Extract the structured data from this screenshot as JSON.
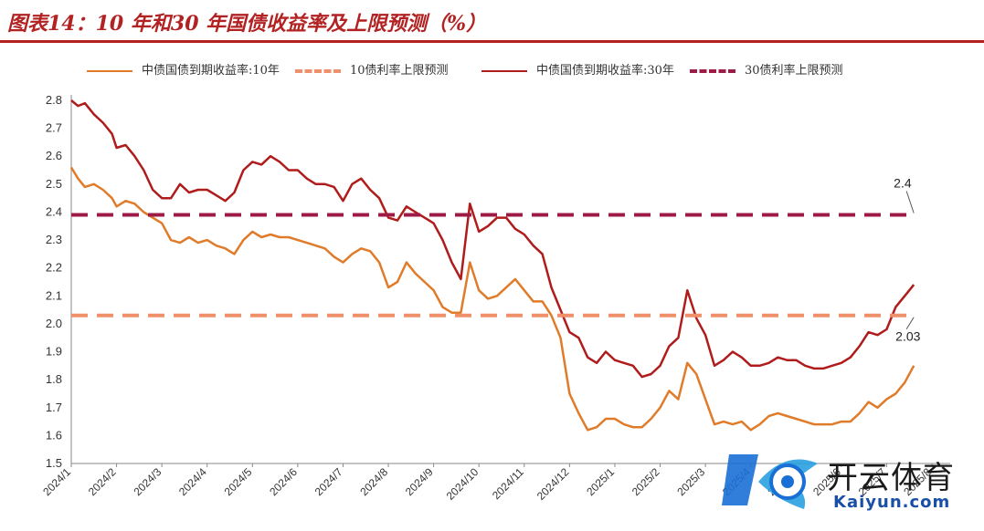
{
  "title": "图表14：10 年和30 年国债收益率及上限预测（%）",
  "legend": [
    {
      "label": "中债国债到期收益率:10年",
      "color": "#e07b2a",
      "dash": false
    },
    {
      "label": "10债利率上限预测",
      "color": "#f0906a",
      "dash": true
    },
    {
      "label": "中债国债到期收益率:30年",
      "color": "#b01c1c",
      "dash": false
    },
    {
      "label": "30债利率上限预测",
      "color": "#9e1b45",
      "dash": true
    }
  ],
  "watermark": {
    "main": "开云体育",
    "sub": "Kaiyun.com",
    "logo": "kaiyun-logo"
  },
  "chart_data": {
    "type": "line",
    "title": "",
    "xlabel": "",
    "ylabel": "",
    "ylim": [
      1.5,
      2.8
    ],
    "yticks": [
      "2.8",
      "2.7",
      "2.6",
      "2.5",
      "2.4",
      "2.3",
      "2.2",
      "2.1",
      "2.0",
      "1.9",
      "1.8",
      "1.7",
      "1.6",
      "1.5"
    ],
    "xticks": [
      "2024/1",
      "2024/2",
      "2024/3",
      "2024/4",
      "2024/5",
      "2024/6",
      "2024/7",
      "2024/8",
      "2024/9",
      "2024/10",
      "2024/11",
      "2024/12",
      "2025/1",
      "2025/2",
      "2025/3",
      "2025/4",
      "2025/5",
      "2025/6",
      "2025/7",
      "2025/8"
    ],
    "annotations": [
      {
        "text": "2.4",
        "x": 18.6,
        "y": 2.39
      },
      {
        "text": "2.03",
        "x": 18.6,
        "y": 2.03
      }
    ],
    "series": [
      {
        "name": "中债国债到期收益率:10年",
        "color": "#e07b2a",
        "x": [
          0,
          0.15,
          0.3,
          0.5,
          0.7,
          0.9,
          1.0,
          1.2,
          1.4,
          1.6,
          1.8,
          2.0,
          2.2,
          2.4,
          2.6,
          2.8,
          3.0,
          3.2,
          3.4,
          3.6,
          3.8,
          4.0,
          4.2,
          4.4,
          4.6,
          4.8,
          5.0,
          5.2,
          5.4,
          5.6,
          5.8,
          6.0,
          6.2,
          6.4,
          6.6,
          6.8,
          7.0,
          7.2,
          7.4,
          7.6,
          7.8,
          8.0,
          8.2,
          8.4,
          8.6,
          8.8,
          9.0,
          9.2,
          9.4,
          9.6,
          9.8,
          10.0,
          10.2,
          10.4,
          10.6,
          10.8,
          11.0,
          11.2,
          11.4,
          11.6,
          11.8,
          12.0,
          12.2,
          12.4,
          12.6,
          12.8,
          13.0,
          13.2,
          13.4,
          13.6,
          13.8,
          14.0,
          14.2,
          14.4,
          14.6,
          14.8,
          15.0,
          15.2,
          15.4,
          15.6,
          15.8,
          16.0,
          16.2,
          16.4,
          16.6,
          16.8,
          17.0,
          17.2,
          17.4,
          17.6,
          17.8,
          18.0,
          18.2,
          18.4,
          18.6
        ],
        "y": [
          2.56,
          2.52,
          2.49,
          2.5,
          2.48,
          2.45,
          2.42,
          2.44,
          2.43,
          2.4,
          2.38,
          2.36,
          2.3,
          2.29,
          2.31,
          2.29,
          2.3,
          2.28,
          2.27,
          2.25,
          2.3,
          2.33,
          2.31,
          2.32,
          2.31,
          2.31,
          2.3,
          2.29,
          2.28,
          2.27,
          2.24,
          2.22,
          2.25,
          2.27,
          2.26,
          2.22,
          2.13,
          2.15,
          2.22,
          2.18,
          2.15,
          2.12,
          2.06,
          2.04,
          2.04,
          2.22,
          2.12,
          2.09,
          2.1,
          2.13,
          2.16,
          2.12,
          2.08,
          2.08,
          2.03,
          1.95,
          1.75,
          1.68,
          1.62,
          1.63,
          1.66,
          1.66,
          1.64,
          1.63,
          1.63,
          1.66,
          1.7,
          1.76,
          1.73,
          1.86,
          1.82,
          1.73,
          1.64,
          1.65,
          1.64,
          1.65,
          1.62,
          1.64,
          1.67,
          1.68,
          1.67,
          1.66,
          1.65,
          1.64,
          1.64,
          1.64,
          1.65,
          1.65,
          1.68,
          1.72,
          1.7,
          1.73,
          1.75,
          1.79,
          1.85
        ]
      },
      {
        "name": "中债国债到期收益率:30年",
        "color": "#b01c1c",
        "x": [
          0,
          0.15,
          0.3,
          0.5,
          0.7,
          0.9,
          1.0,
          1.2,
          1.4,
          1.6,
          1.8,
          2.0,
          2.2,
          2.4,
          2.6,
          2.8,
          3.0,
          3.2,
          3.4,
          3.6,
          3.8,
          4.0,
          4.2,
          4.4,
          4.6,
          4.8,
          5.0,
          5.2,
          5.4,
          5.6,
          5.8,
          6.0,
          6.2,
          6.4,
          6.6,
          6.8,
          7.0,
          7.2,
          7.4,
          7.6,
          7.8,
          8.0,
          8.2,
          8.4,
          8.6,
          8.8,
          9.0,
          9.2,
          9.4,
          9.6,
          9.8,
          10.0,
          10.2,
          10.4,
          10.6,
          10.8,
          11.0,
          11.2,
          11.4,
          11.6,
          11.8,
          12.0,
          12.2,
          12.4,
          12.6,
          12.8,
          13.0,
          13.2,
          13.4,
          13.6,
          13.8,
          14.0,
          14.2,
          14.4,
          14.6,
          14.8,
          15.0,
          15.2,
          15.4,
          15.6,
          15.8,
          16.0,
          16.2,
          16.4,
          16.6,
          16.8,
          17.0,
          17.2,
          17.4,
          17.6,
          17.8,
          18.0,
          18.2,
          18.4,
          18.6
        ],
        "y": [
          2.8,
          2.78,
          2.79,
          2.75,
          2.72,
          2.68,
          2.63,
          2.64,
          2.6,
          2.55,
          2.48,
          2.45,
          2.45,
          2.5,
          2.47,
          2.48,
          2.48,
          2.46,
          2.44,
          2.47,
          2.55,
          2.58,
          2.57,
          2.6,
          2.58,
          2.55,
          2.55,
          2.52,
          2.5,
          2.5,
          2.49,
          2.44,
          2.5,
          2.52,
          2.48,
          2.45,
          2.38,
          2.37,
          2.42,
          2.4,
          2.38,
          2.36,
          2.3,
          2.22,
          2.16,
          2.43,
          2.33,
          2.35,
          2.38,
          2.38,
          2.34,
          2.32,
          2.28,
          2.25,
          2.13,
          2.05,
          1.97,
          1.95,
          1.88,
          1.86,
          1.9,
          1.87,
          1.86,
          1.85,
          1.81,
          1.82,
          1.85,
          1.92,
          1.95,
          2.12,
          2.02,
          1.96,
          1.85,
          1.87,
          1.9,
          1.88,
          1.85,
          1.85,
          1.86,
          1.88,
          1.87,
          1.87,
          1.85,
          1.84,
          1.84,
          1.85,
          1.86,
          1.88,
          1.92,
          1.97,
          1.96,
          1.98,
          2.06,
          2.1,
          2.14
        ]
      },
      {
        "name": "10债利率上限预测",
        "color": "#f0906a",
        "dash": true,
        "x": [
          0,
          18.6
        ],
        "y": [
          2.03,
          2.03
        ]
      },
      {
        "name": "30债利率上限预测",
        "color": "#9e1b45",
        "dash": true,
        "x": [
          0,
          18.6
        ],
        "y": [
          2.39,
          2.39
        ]
      }
    ]
  }
}
